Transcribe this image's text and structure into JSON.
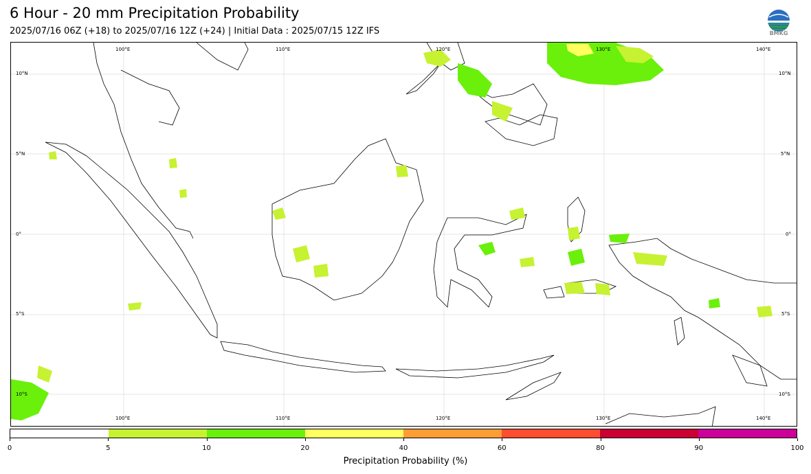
{
  "header": {
    "title": "6 Hour - 20 mm Precipitation Probability",
    "subtitle": "2025/07/16 06Z (+18) to 2025/07/16 12Z (+24) | Initial Data : 2025/07/15 12Z IFS",
    "logo_text": "BMKG"
  },
  "map": {
    "region": "Indonesia",
    "lon_labels": [
      "100°E",
      "110°E",
      "120°E",
      "130°E",
      "140°E"
    ],
    "lat_labels": [
      "10°N",
      "5°N",
      "0°",
      "5°S",
      "10°S"
    ],
    "precip_color_light": "#c6f231",
    "precip_color": "#6af00a",
    "precip_color_yellow": "#ffff5f",
    "coast_color": "#000000"
  },
  "colorbar": {
    "label": "Precipitation Probability (%)",
    "ticks": [
      "0",
      "5",
      "10",
      "20",
      "40",
      "60",
      "80",
      "90",
      "100"
    ],
    "colors": [
      "#ffffff",
      "#c6f231",
      "#6af00a",
      "#ffff5f",
      "#ff9d35",
      "#ff4d30",
      "#cc0033",
      "#cc0099"
    ]
  }
}
